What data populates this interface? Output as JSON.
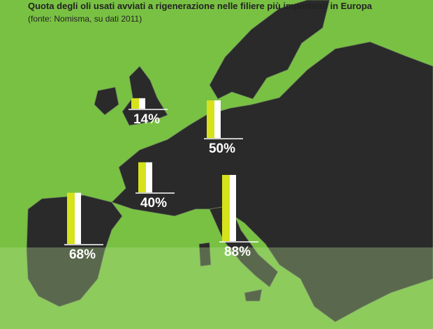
{
  "chart_data": {
    "type": "bar",
    "title": "Quota degli oli usati avviati a rigenerazione nelle filiere più importanti in Europa",
    "subtitle": "(fonte: Nomisma, su dati 2011)",
    "values": [
      14,
      50,
      40,
      68,
      88
    ],
    "value_labels": [
      "14%",
      "50%",
      "40%",
      "68%",
      "88%"
    ],
    "color": "#d6e21c"
  }
}
